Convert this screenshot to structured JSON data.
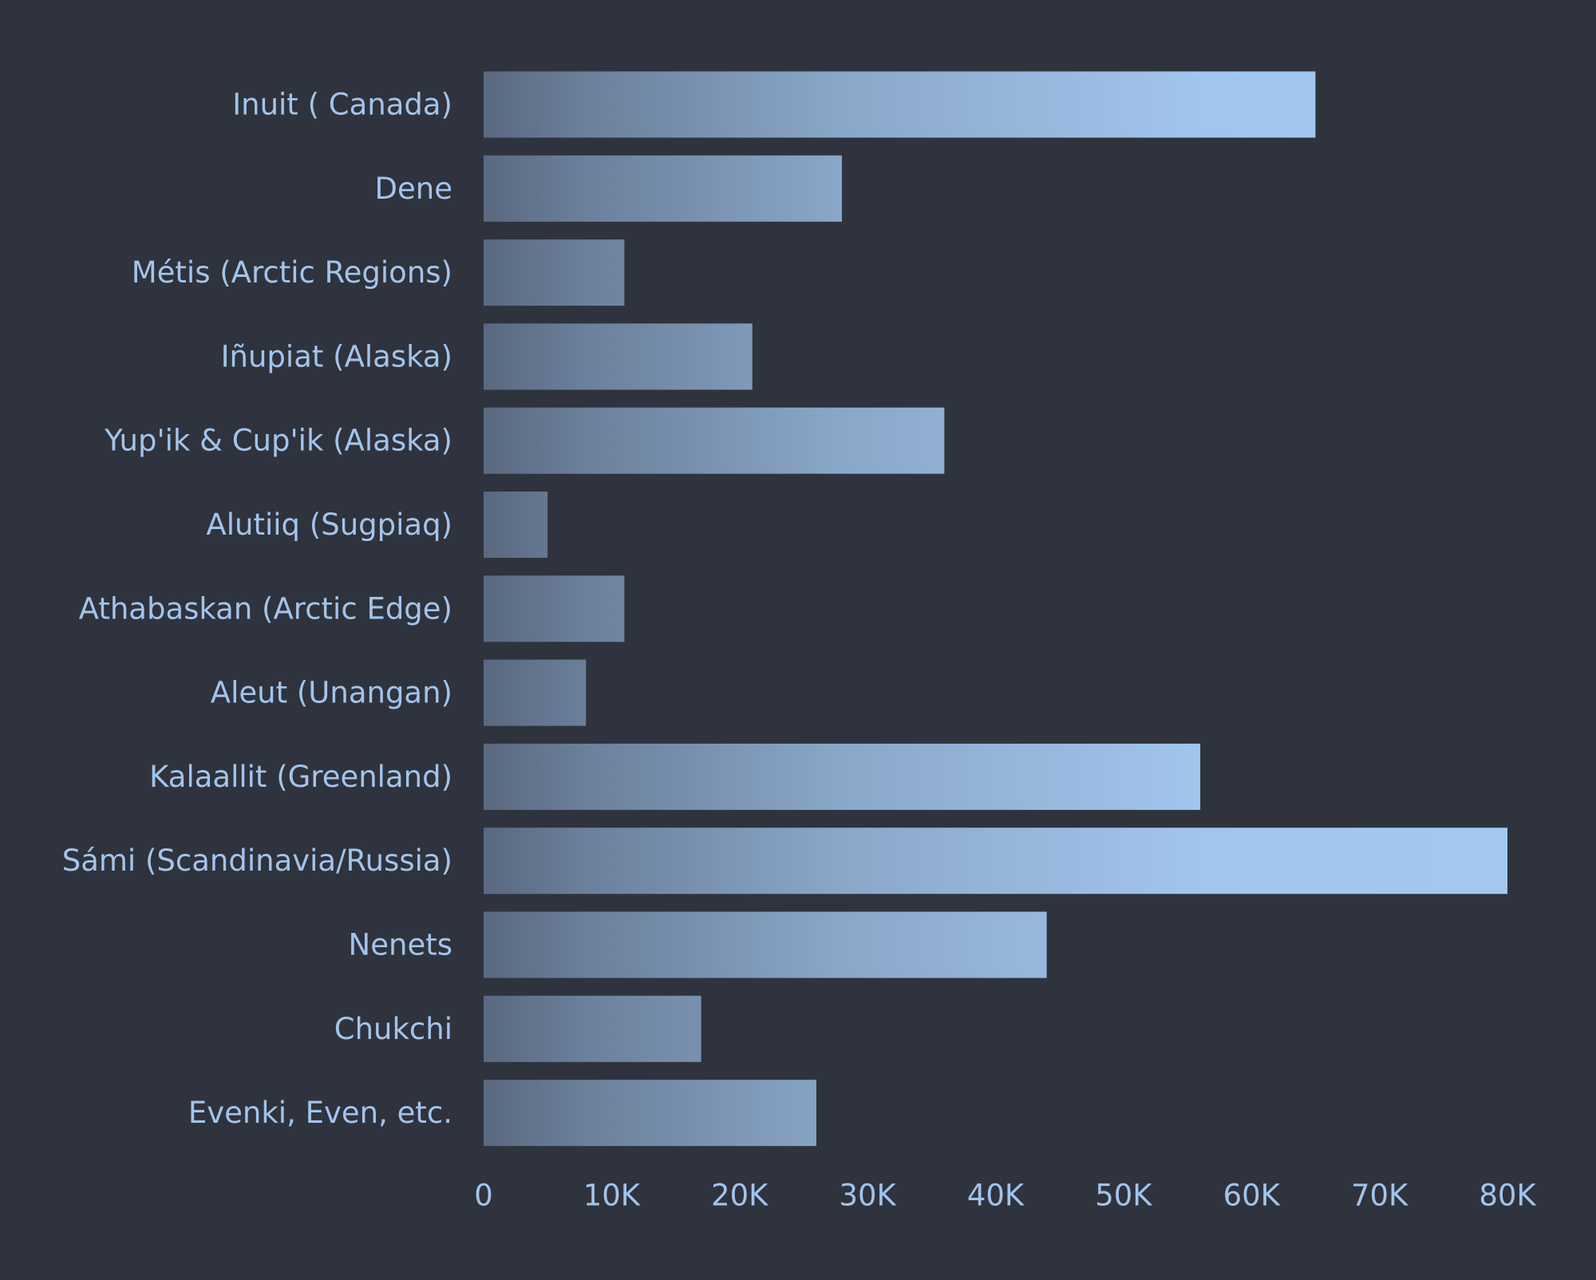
{
  "chart_data": {
    "type": "bar",
    "orientation": "horizontal",
    "categories": [
      "Inuit ( Canada)",
      "Dene",
      "Métis (Arctic Regions)",
      "Iñupiat (Alaska)",
      "Yup'ik & Cup'ik (Alaska)",
      "Alutiiq (Sugpiaq)",
      "Athabaskan (Arctic Edge)",
      "Aleut (Unangan)",
      "Kalaallit (Greenland)",
      "Sámi (Scandinavia/Russia)",
      "Nenets",
      "Chukchi",
      "Evenki, Even, etc."
    ],
    "values": [
      65000,
      28000,
      11000,
      21000,
      36000,
      5000,
      11000,
      8000,
      56000,
      80000,
      44000,
      17000,
      26000
    ],
    "title": "",
    "xlabel": "",
    "ylabel": "",
    "xlim": [
      0,
      80000
    ],
    "x_ticks": [
      {
        "value": 0,
        "label": "0"
      },
      {
        "value": 10000,
        "label": "10K"
      },
      {
        "value": 20000,
        "label": "20K"
      },
      {
        "value": 30000,
        "label": "30K"
      },
      {
        "value": 40000,
        "label": "40K"
      },
      {
        "value": 50000,
        "label": "50K"
      },
      {
        "value": 60000,
        "label": "60K"
      },
      {
        "value": 70000,
        "label": "70K"
      },
      {
        "value": 80000,
        "label": "80K"
      }
    ],
    "grid": false,
    "legend": "none",
    "colors": {
      "background": "#2f333d",
      "bar_start": "#5a6880",
      "bar_end": "#a3c8f0",
      "text": "#a3c4eb"
    }
  }
}
